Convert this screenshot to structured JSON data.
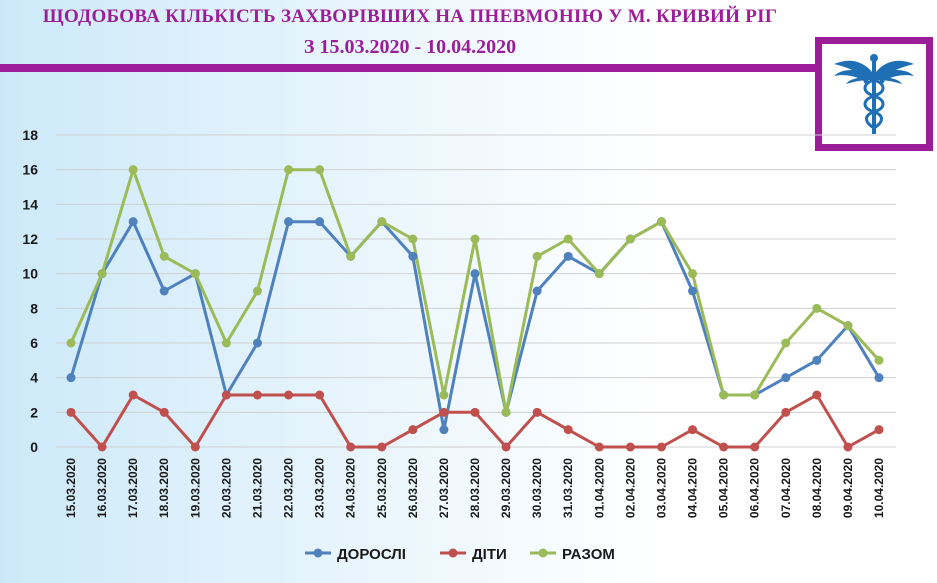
{
  "title": "ЩОДОБОВА КІЛЬКІСТЬ  ЗАХВОРІВШИХ НА ПНЕВМОНІЮ  У М. КРИВИЙ РІГ",
  "subtitle": "З 15.03.2020 - 10.04.2020",
  "logo_icon": "caduceus-icon",
  "colors": {
    "accent": "#9b1d98",
    "adults": "#4f81bd",
    "children": "#c0504d",
    "total": "#9bbb59",
    "logo": "#1f6fb5"
  },
  "chart_data": {
    "type": "line",
    "title": "ЩОДОБОВА КІЛЬКІСТЬ  ЗАХВОРІВШИХ НА ПНЕВМОНІЮ  У М. КРИВИЙ РІГ",
    "subtitle": "З 15.03.2020 - 10.04.2020",
    "xlabel": "",
    "ylabel": "",
    "ylim": [
      0,
      18
    ],
    "yticks": [
      0,
      2,
      4,
      6,
      8,
      10,
      12,
      14,
      16,
      18
    ],
    "grid": true,
    "legend_position": "bottom",
    "categories": [
      "15.03.2020",
      "16.03.2020",
      "17.03.2020",
      "18.03.2020",
      "19.03.2020",
      "20.03.2020",
      "21.03.2020",
      "22.03.2020",
      "23.03.2020",
      "24.03.2020",
      "25.03.2020",
      "26.03.2020",
      "27.03.2020",
      "28.03.2020",
      "29.03.2020",
      "30.03.2020",
      "31.03.2020",
      "01.04.2020",
      "02.04.2020",
      "03.04.2020",
      "04.04.2020",
      "05.04.2020",
      "06.04.2020",
      "07.04.2020",
      "08.04.2020",
      "09.04.2020",
      "10.04.2020"
    ],
    "series": [
      {
        "name": "ДОРОСЛІ",
        "color": "#4f81bd",
        "values": [
          4,
          10,
          13,
          9,
          10,
          3,
          6,
          13,
          13,
          11,
          13,
          11,
          1,
          10,
          2,
          9,
          11,
          10,
          12,
          13,
          9,
          3,
          3,
          4,
          5,
          7,
          4
        ]
      },
      {
        "name": "ДІТИ",
        "color": "#c0504d",
        "values": [
          2,
          0,
          3,
          2,
          0,
          3,
          3,
          3,
          3,
          0,
          0,
          1,
          2,
          2,
          0,
          2,
          1,
          0,
          0,
          0,
          1,
          0,
          0,
          2,
          3,
          0,
          1
        ]
      },
      {
        "name": "РАЗОМ",
        "color": "#9bbb59",
        "values": [
          6,
          10,
          16,
          11,
          10,
          6,
          9,
          16,
          16,
          11,
          13,
          12,
          3,
          12,
          2,
          11,
          12,
          10,
          12,
          13,
          10,
          3,
          3,
          6,
          8,
          7,
          5
        ]
      }
    ]
  }
}
